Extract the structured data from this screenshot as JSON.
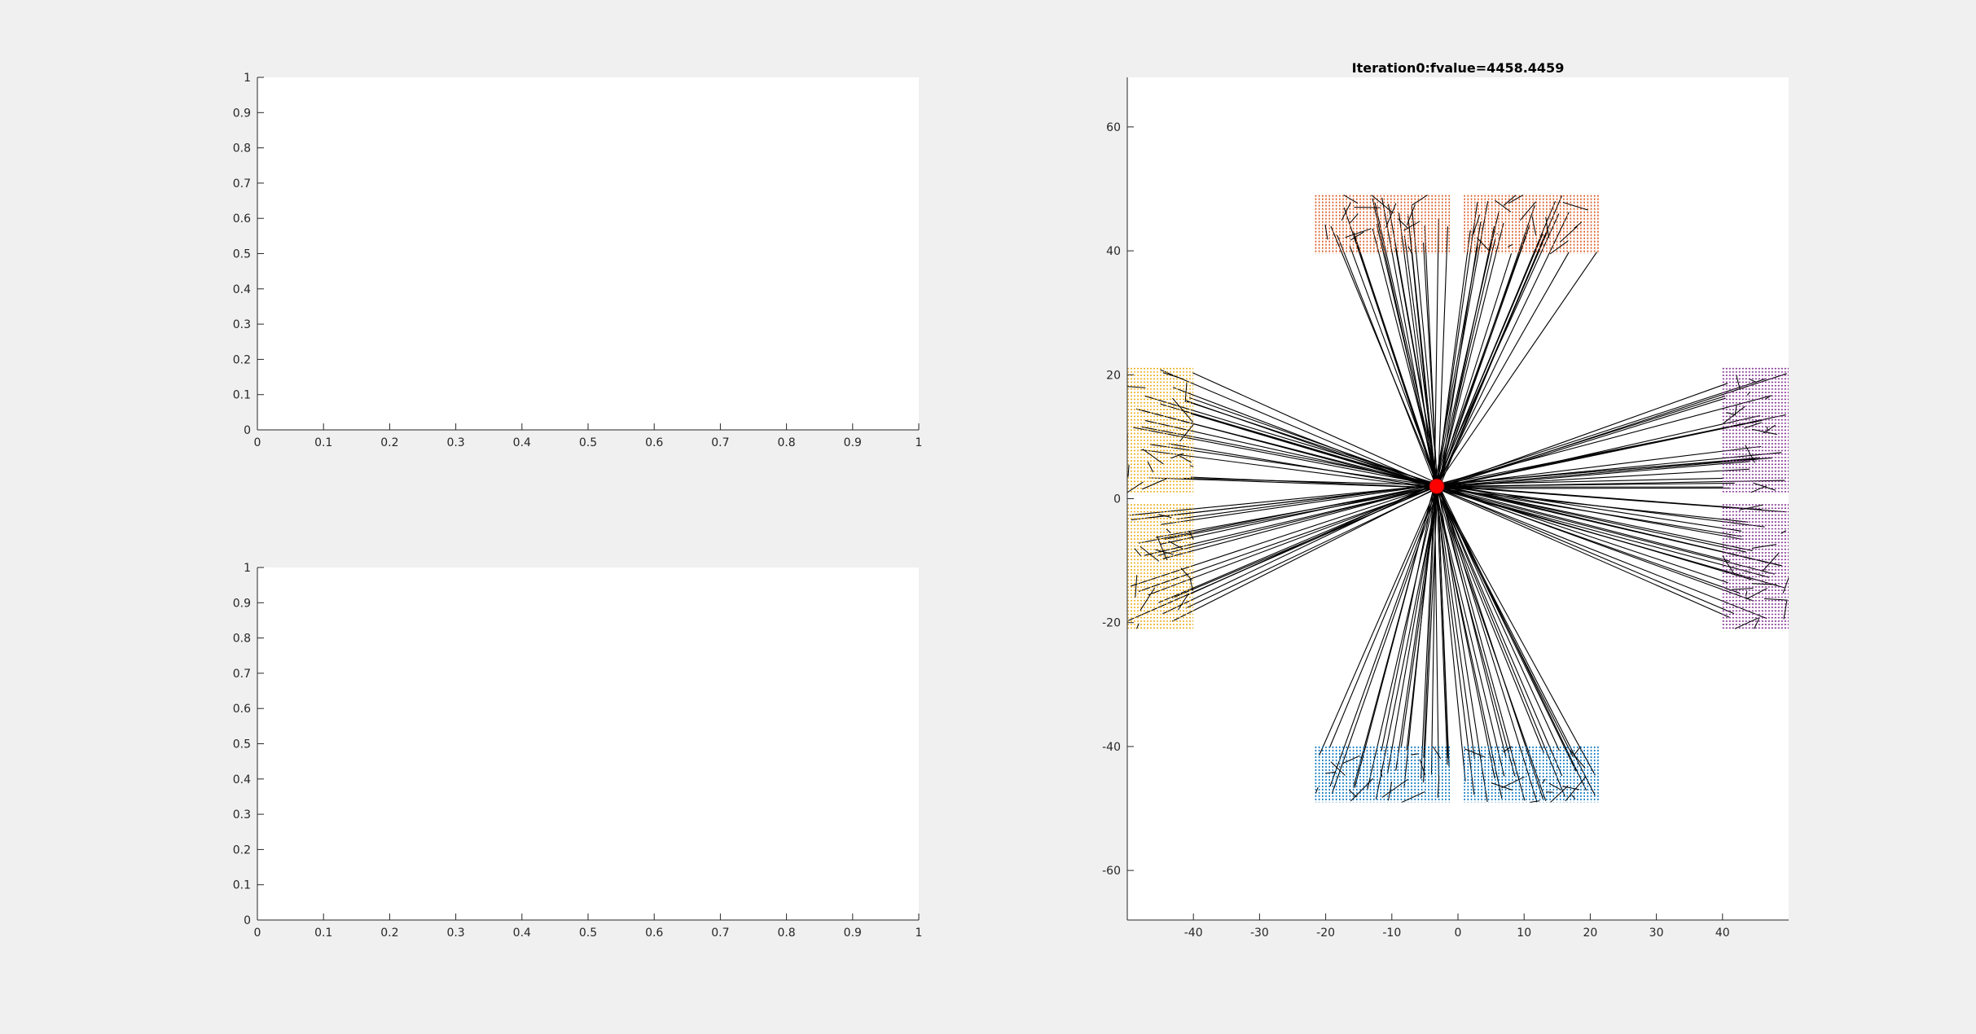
{
  "chart_data": [
    {
      "type": "line",
      "title": "",
      "xlabel": "",
      "ylabel": "",
      "xlim": [
        0,
        1
      ],
      "ylim": [
        0,
        1
      ],
      "xticks": [
        "0",
        "0.1",
        "0.2",
        "0.3",
        "0.4",
        "0.5",
        "0.6",
        "0.7",
        "0.8",
        "0.9",
        "1"
      ],
      "yticks": [
        "0",
        "0.1",
        "0.2",
        "0.3",
        "0.4",
        "0.5",
        "0.6",
        "0.7",
        "0.8",
        "0.9",
        "1"
      ],
      "series": []
    },
    {
      "type": "line",
      "title": "",
      "xlabel": "",
      "ylabel": "",
      "xlim": [
        0,
        1
      ],
      "ylim": [
        0,
        1
      ],
      "xticks": [
        "0",
        "0.1",
        "0.2",
        "0.3",
        "0.4",
        "0.5",
        "0.6",
        "0.7",
        "0.8",
        "0.9",
        "1"
      ],
      "yticks": [
        "0",
        "0.1",
        "0.2",
        "0.3",
        "0.4",
        "0.5",
        "0.6",
        "0.7",
        "0.8",
        "0.9",
        "1"
      ],
      "series": []
    },
    {
      "type": "scatter",
      "title": "Iteration0:fvalue=4458.4459",
      "xlabel": "",
      "ylabel": "",
      "xlim": [
        -50,
        50
      ],
      "ylim": [
        -68,
        68
      ],
      "xticks": [
        -40,
        -30,
        -20,
        -10,
        0,
        10,
        20,
        30,
        40
      ],
      "yticks": [
        -60,
        -40,
        -20,
        0,
        20,
        40,
        60
      ],
      "hub": {
        "x": -3.2,
        "y": 2,
        "color": "#ff0000"
      },
      "grids": [
        {
          "name": "orange-left",
          "color": "#d95319",
          "x": [
            -21.5,
            -1
          ],
          "y": [
            39.5,
            49
          ]
        },
        {
          "name": "orange-right",
          "color": "#d95319",
          "x": [
            1,
            21.5
          ],
          "y": [
            39.5,
            49
          ]
        },
        {
          "name": "blue-left",
          "color": "#0072bd",
          "x": [
            -21.5,
            -1
          ],
          "y": [
            -49,
            -40
          ]
        },
        {
          "name": "blue-right",
          "color": "#0072bd",
          "x": [
            1,
            21.5
          ],
          "y": [
            -49,
            -40
          ]
        },
        {
          "name": "yellow-top",
          "color": "#edb120",
          "x": [
            -50,
            -40
          ],
          "y": [
            1,
            21
          ]
        },
        {
          "name": "yellow-bottom",
          "color": "#edb120",
          "x": [
            -50,
            -40
          ],
          "y": [
            -21,
            -1
          ]
        },
        {
          "name": "purple-top",
          "color": "#7e2f8e",
          "x": [
            40,
            50
          ],
          "y": [
            1,
            21
          ]
        },
        {
          "name": "purple-bottom",
          "color": "#7e2f8e",
          "x": [
            40,
            50
          ],
          "y": [
            -21,
            -1
          ]
        }
      ],
      "line_color": "#000000"
    }
  ]
}
